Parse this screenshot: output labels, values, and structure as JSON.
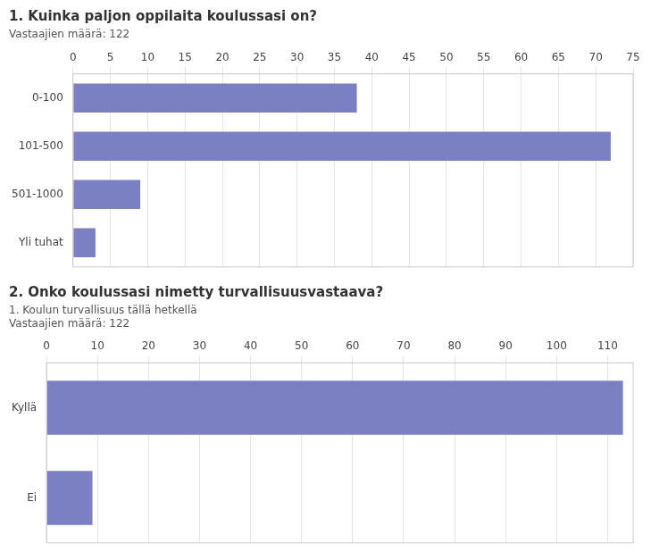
{
  "chart_data": [
    {
      "type": "bar",
      "orientation": "horizontal",
      "title": "1. Kuinka paljon oppilaita koulussasi on?",
      "subtitle": "Vastaajien määrä: 122",
      "categories": [
        "0-100",
        "101-500",
        "501-1000",
        "Yli tuhat"
      ],
      "values": [
        38,
        72,
        9,
        3
      ],
      "color": "#7b7fc4",
      "xlim": [
        0,
        75
      ],
      "xticks": [
        0,
        5,
        10,
        15,
        20,
        25,
        30,
        35,
        40,
        45,
        50,
        55,
        60,
        65,
        70,
        75
      ],
      "grid": true
    },
    {
      "type": "bar",
      "orientation": "horizontal",
      "title": "2. Onko koulussasi nimetty turvallisuusvastaava?",
      "subtitle": [
        "1. Koulun turvallisuus tällä hetkellä",
        "Vastaajien määrä: 122"
      ],
      "categories": [
        "Kyllä",
        "Ei"
      ],
      "values": [
        113,
        9
      ],
      "color": "#7b7fc4",
      "xlim": [
        0,
        115
      ],
      "xticks": [
        0,
        10,
        20,
        30,
        40,
        50,
        60,
        70,
        80,
        90,
        100,
        110
      ],
      "grid": true
    }
  ]
}
